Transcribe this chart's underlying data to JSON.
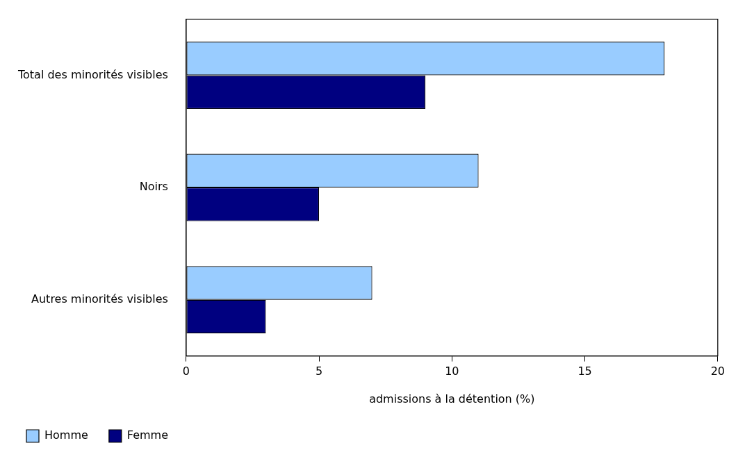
{
  "chart_data": {
    "type": "bar",
    "orientation": "horizontal",
    "xlabel": "admissions à la détention (%)",
    "categories": [
      "Total des minorités visibles",
      "Noirs",
      "Autres minorités visibles"
    ],
    "series": [
      {
        "name": "Homme",
        "color": "#99ccff",
        "values": [
          18,
          11,
          7
        ]
      },
      {
        "name": "Femme",
        "color": "#000080",
        "values": [
          9,
          5,
          3
        ]
      }
    ],
    "xlim": [
      0,
      20
    ],
    "xticks": [
      0,
      5,
      10,
      15,
      20
    ],
    "grid": false,
    "legend": "bottom"
  }
}
